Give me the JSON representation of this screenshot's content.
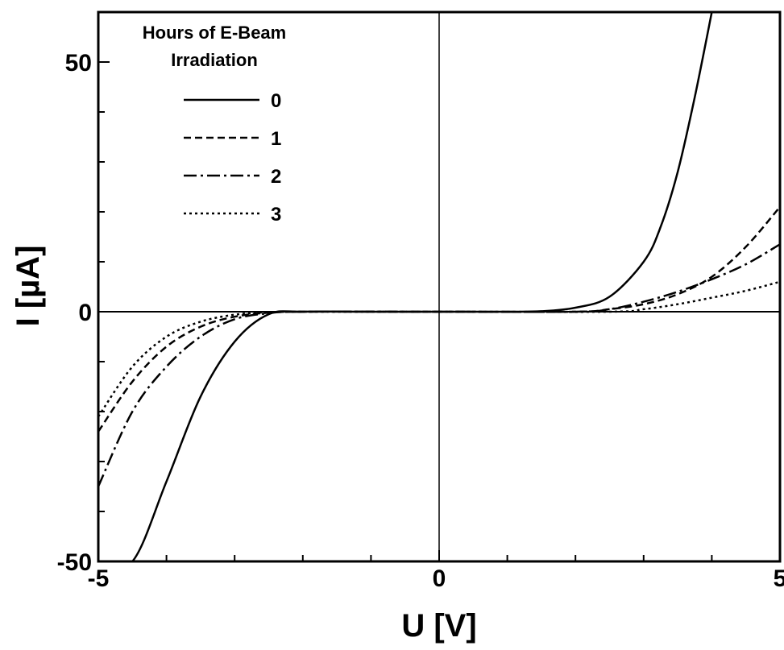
{
  "chart_data": {
    "type": "line",
    "xlabel": "U [V]",
    "ylabel": "I [µA]",
    "xlim": [
      -5,
      5
    ],
    "ylim": [
      -50,
      60
    ],
    "x_ticks": [
      -5,
      0,
      5
    ],
    "x_tick_labels": [
      "-5",
      "0",
      "5"
    ],
    "y_ticks": [
      -50,
      0,
      50
    ],
    "y_tick_labels": [
      "-50",
      "0",
      "50"
    ],
    "legend": {
      "title_lines": [
        "Hours of E-Beam",
        "Irradiation"
      ],
      "position": "top-left"
    },
    "series": [
      {
        "name": "0",
        "line_style": "solid",
        "x": [
          -5,
          -4.5,
          -4.0,
          -3.5,
          -3.0,
          -2.5,
          -2.0,
          -1.0,
          0,
          1.0,
          1.5,
          2.0,
          2.5,
          3.0,
          3.25,
          3.5,
          3.75,
          4.0
        ],
        "y": [
          -50,
          -50,
          -34,
          -17,
          -6,
          -0.5,
          0,
          0,
          0,
          0,
          0.1,
          0.8,
          3,
          10,
          17,
          28,
          43,
          60
        ]
      },
      {
        "name": "1",
        "line_style": "dashed",
        "x": [
          -5,
          -4.5,
          -4.0,
          -3.5,
          -3.0,
          -2.5,
          -2.0,
          0,
          2.0,
          2.5,
          3.0,
          3.5,
          4.0,
          4.5,
          5.0
        ],
        "y": [
          -24,
          -14,
          -7,
          -3,
          -1,
          -0.2,
          0,
          0,
          0,
          0.5,
          1.5,
          3.5,
          7,
          13,
          21
        ]
      },
      {
        "name": "2",
        "line_style": "dash-dot",
        "x": [
          -5,
          -4.5,
          -4.0,
          -3.5,
          -3.0,
          -2.5,
          -2.0,
          0,
          2.0,
          2.5,
          3.0,
          3.5,
          4.0,
          4.5,
          5.0
        ],
        "y": [
          -35,
          -20,
          -11,
          -5,
          -1.5,
          -0.3,
          0,
          0,
          0,
          0.5,
          2,
          4,
          6.5,
          9.5,
          13.5
        ]
      },
      {
        "name": "3",
        "line_style": "dotted",
        "x": [
          -5,
          -4.5,
          -4.0,
          -3.5,
          -3.0,
          -2.5,
          -2.0,
          0,
          2.5,
          3.0,
          3.5,
          4.0,
          4.5,
          5.0
        ],
        "y": [
          -21,
          -11,
          -5,
          -2,
          -0.6,
          -0.1,
          0,
          0,
          0,
          0.5,
          1.5,
          2.8,
          4.2,
          6
        ]
      }
    ]
  }
}
